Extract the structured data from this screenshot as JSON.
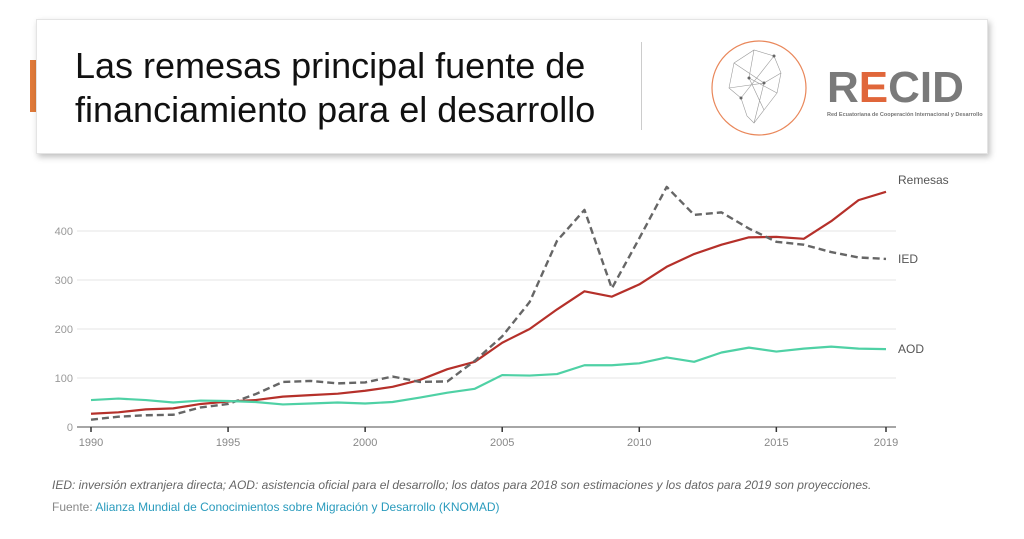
{
  "slide": {
    "title_line1": "Las remesas principal fuente de",
    "title_line2": "financiamiento para el desarrollo",
    "logo_text": "RECID",
    "logo_subtitle": "Red Ecuatoriana de Cooperación Internacional y Desarrollo",
    "accent_color": "#e07a3a"
  },
  "chart_data": {
    "type": "line",
    "x": [
      1990,
      1991,
      1992,
      1993,
      1994,
      1995,
      1996,
      1997,
      1998,
      1999,
      2000,
      2001,
      2002,
      2003,
      2004,
      2005,
      2006,
      2007,
      2008,
      2009,
      2010,
      2011,
      2012,
      2013,
      2014,
      2015,
      2016,
      2017,
      2018,
      2019
    ],
    "xticks": [
      "1990",
      "1995",
      "2000",
      "2005",
      "2010",
      "2015",
      "2019"
    ],
    "yticks": [
      "0",
      "100",
      "200",
      "300",
      "400"
    ],
    "ylim": [
      0,
      500
    ],
    "xlim": [
      1990,
      2019
    ],
    "grid": true,
    "legend": "inline-right",
    "series": [
      {
        "name": "Remesas",
        "color": "#b5302a",
        "dashed": false,
        "values": [
          27,
          30,
          36,
          38,
          47,
          52,
          55,
          62,
          65,
          68,
          74,
          82,
          96,
          118,
          133,
          172,
          200,
          240,
          277,
          266,
          291,
          327,
          353,
          372,
          387,
          388,
          384,
          420,
          463,
          480
        ]
      },
      {
        "name": "IED",
        "color": "#666666",
        "dashed": true,
        "values": [
          15,
          21,
          24,
          25,
          40,
          47,
          67,
          92,
          94,
          89,
          91,
          103,
          92,
          93,
          135,
          185,
          255,
          380,
          443,
          283,
          385,
          490,
          433,
          438,
          405,
          378,
          372,
          357,
          346,
          343
        ]
      },
      {
        "name": "AOD",
        "color": "#4fd1a5",
        "dashed": false,
        "values": [
          55,
          58,
          55,
          50,
          54,
          53,
          51,
          46,
          48,
          50,
          48,
          51,
          60,
          70,
          78,
          106,
          105,
          108,
          126,
          126,
          130,
          142,
          133,
          152,
          162,
          154,
          160,
          164,
          160,
          159
        ]
      }
    ],
    "note": "IED: inversión extranjera directa; AOD: asistencia oficial para el desarrollo; los datos para 2018 son estimaciones y los datos para 2019 son proyecciones.",
    "source_label": "Fuente:",
    "source_link": "Alianza Mundial de Conocimientos sobre Migración y Desarrollo (KNOMAD)"
  }
}
